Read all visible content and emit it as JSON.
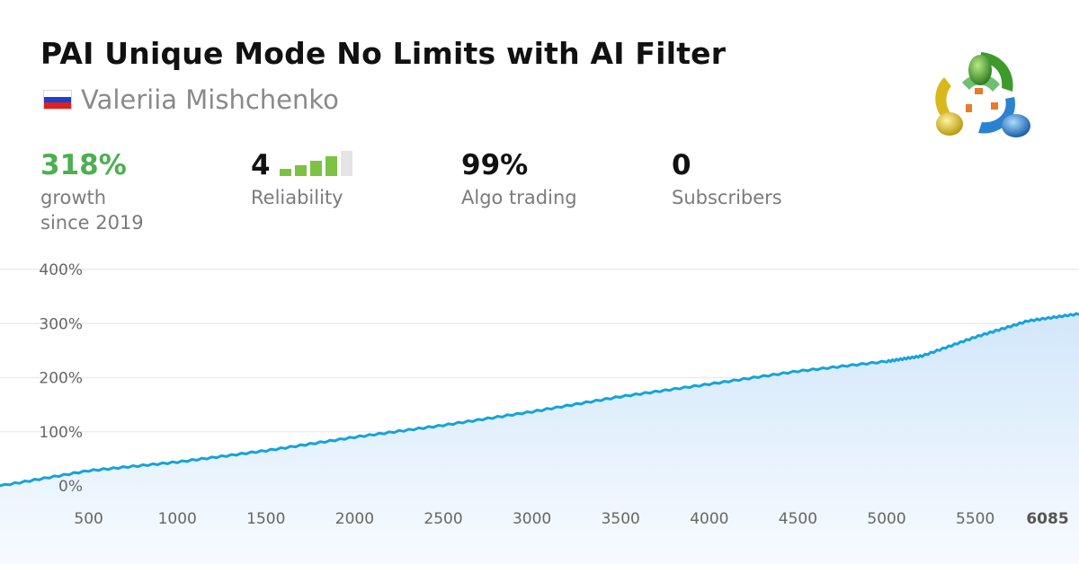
{
  "title": "PAI Unique Mode No Limits with AI Filter",
  "author": {
    "name": "Valeriia Mishchenko",
    "flag_icon": "russia-flag-icon",
    "flag_colors": [
      "#ffffff",
      "#1c3fd1",
      "#e0201b"
    ]
  },
  "stats": {
    "growth": {
      "value": "318%",
      "label_line1": "growth",
      "label_line2": "since 2019"
    },
    "reliability": {
      "value": "4",
      "label": "Reliability",
      "level": 4,
      "max_level": 5
    },
    "algo": {
      "value": "99%",
      "label": "Algo trading"
    },
    "subscribers": {
      "value": "0",
      "label": "Subscribers"
    }
  },
  "colors": {
    "accent_green": "#4caf50",
    "bar_active": "#7dc242",
    "bar_inactive": "#e4e4e4",
    "line": "#16a2dc",
    "fill": "#dcedfb"
  },
  "logo_icon": "metatrader-logo-icon",
  "chart_data": {
    "type": "area",
    "title": "",
    "xlabel": "",
    "ylabel": "",
    "xlim": [
      0,
      6085
    ],
    "ylim": [
      0,
      400
    ],
    "yticks": [
      "0%",
      "100%",
      "200%",
      "300%",
      "400%"
    ],
    "xticks": [
      "500",
      "1000",
      "1500",
      "2000",
      "2500",
      "3000",
      "3500",
      "4000",
      "4500",
      "5000",
      "5500",
      "6085"
    ],
    "x": [
      0,
      500,
      1000,
      1500,
      2000,
      2500,
      3000,
      3500,
      4000,
      4500,
      5000,
      5200,
      5500,
      5800,
      6085
    ],
    "y": [
      0,
      28,
      44,
      65,
      90,
      112,
      137,
      165,
      188,
      212,
      230,
      240,
      275,
      305,
      318
    ],
    "grid": true,
    "legend": "none"
  }
}
